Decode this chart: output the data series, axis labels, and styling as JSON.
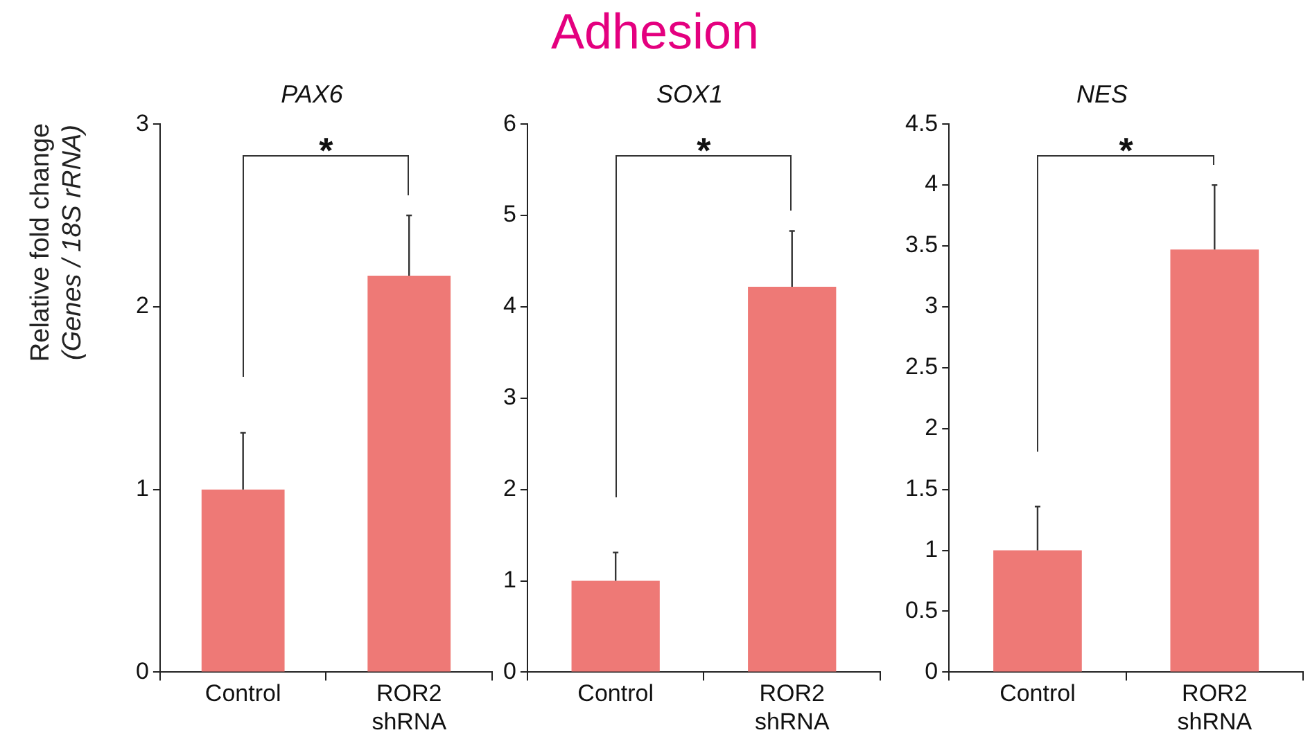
{
  "chart_data": [
    {
      "type": "bar",
      "subtitle": "PAX6",
      "ylabel": "Relative fold change\n(Genes / 18S rRNA)",
      "categories": [
        "Control",
        "ROR2\nshRNA"
      ],
      "values": [
        1.0,
        2.17
      ],
      "errors": [
        [
          1.0,
          1.31
        ],
        [
          2.17,
          2.5
        ]
      ],
      "color": "#ee7976",
      "ylim": [
        0,
        3
      ],
      "yticks": [
        0,
        1,
        2,
        3
      ],
      "grid": false,
      "annotations": [
        "*"
      ]
    },
    {
      "type": "bar",
      "title": "Adhesion",
      "subtitle": "SOX1",
      "categories": [
        "Control",
        "ROR2\nshRNA"
      ],
      "values": [
        1.0,
        4.22
      ],
      "errors": [
        [
          1.0,
          1.31
        ],
        [
          4.22,
          4.83
        ]
      ],
      "color": "#ee7976",
      "ylim": [
        0,
        6
      ],
      "yticks": [
        0,
        1,
        2,
        3,
        4,
        5,
        6
      ],
      "grid": false,
      "annotations": [
        "*"
      ]
    },
    {
      "type": "bar",
      "subtitle": "NES",
      "categories": [
        "Control",
        "ROR2\nshRNA"
      ],
      "values": [
        1.0,
        3.47
      ],
      "errors": [
        [
          1.0,
          1.36
        ],
        [
          3.47,
          4.0
        ]
      ],
      "color": "#ee7976",
      "ylim": [
        0,
        4.5
      ],
      "yticks": [
        0,
        0.5,
        1,
        1.5,
        2,
        2.5,
        3,
        3.5,
        4,
        4.5
      ],
      "grid": false,
      "annotations": [
        "*"
      ]
    }
  ]
}
